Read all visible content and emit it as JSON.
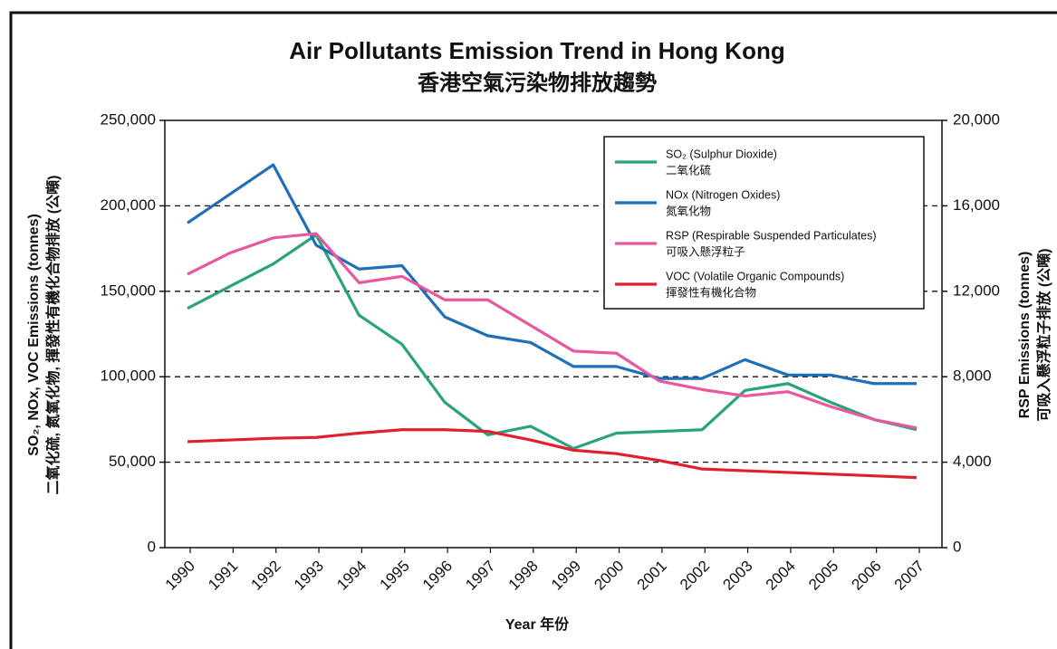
{
  "chart_data": {
    "type": "line",
    "title": "Air Pollutants Emission Trend in Hong Kong",
    "subtitle": "香港空氣污染物排放趨勢",
    "x_label": "Year 年份",
    "y_label": "SO₂, NOx, VOC Emissions (tonnes)",
    "y_label_zh": "二氧化硫, 氮氧化物, 揮發性有機化合物排放 (公噸)",
    "y2_label": "RSP Emissions (tonnes)",
    "y2_label_zh": "可吸入懸浮粒子排放 (公噸)",
    "categories": [
      "1990",
      "1991",
      "1992",
      "1993",
      "1994",
      "1995",
      "1996",
      "1997",
      "1998",
      "1999",
      "2000",
      "2001",
      "2002",
      "2003",
      "2004",
      "2005",
      "2006",
      "2007"
    ],
    "ylim": [
      0,
      250000
    ],
    "yticks": [
      0,
      {
        "value": 50000,
        "label": "50,000"
      },
      {
        "value": 100000,
        "label": "100,000"
      },
      {
        "value": 150000,
        "label": "150,000"
      },
      {
        "value": 200000,
        "label": "200,000"
      },
      {
        "value": 250000,
        "label": "250,000"
      }
    ],
    "y2lim": [
      0,
      20000
    ],
    "y2ticks": [
      0,
      {
        "value": 4000,
        "label": "4,000"
      },
      {
        "value": 8000,
        "label": "8,000"
      },
      {
        "value": 12000,
        "label": "12,000"
      },
      {
        "value": 16000,
        "label": "16,000"
      },
      {
        "value": 20000,
        "label": "20,000"
      }
    ],
    "grid": true,
    "legend": "upper right",
    "series": [
      {
        "name": "SO₂ (Sulphur Dioxide)",
        "name_zh": "二氧化硫",
        "color": "#2aa37a",
        "values": [
          140000,
          153000,
          166000,
          183000,
          136000,
          119000,
          85000,
          66000,
          71000,
          58000,
          67000,
          68000,
          69000,
          92000,
          96000,
          85000,
          75000,
          69000
        ]
      },
      {
        "name": "NOx (Nitrogen Oxides)",
        "name_zh": "氮氧化物",
        "color": "#1f6fb8",
        "values": [
          190000,
          207000,
          224000,
          177000,
          163000,
          165000,
          135000,
          124000,
          120000,
          106000,
          106000,
          99000,
          99000,
          110000,
          101000,
          101000,
          96000,
          96000
        ]
      },
      {
        "name": "RSP (Respirable Suspended Particulates)",
        "name_zh": "可吸入懸浮粒子",
        "color": "#e8579f",
        "axis": "y2",
        "values": [
          12800,
          13800,
          14500,
          14700,
          12400,
          12700,
          11600,
          11600,
          10400,
          9200,
          9100,
          7800,
          7400,
          7100,
          7300,
          6600,
          6000,
          5600
        ]
      },
      {
        "name": "VOC (Volatile Organic Compounds)",
        "name_zh": "揮發性有機化合物",
        "color": "#e0202c",
        "values": [
          62000,
          63000,
          64000,
          64500,
          67000,
          69000,
          69000,
          68000,
          63000,
          57000,
          55000,
          51000,
          46000,
          45000,
          44000,
          43000,
          42000,
          41000
        ]
      }
    ]
  }
}
